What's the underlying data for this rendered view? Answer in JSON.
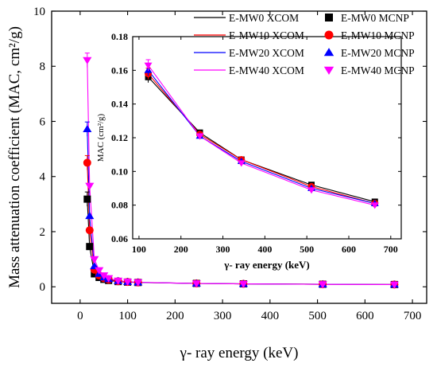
{
  "chart_data": [
    {
      "type": "line",
      "role": "main",
      "xlabel": "γ- ray energy (keV)",
      "ylabel": "Mass attenuation coefficient (MAC, cm²/g)",
      "xlim": [
        -60,
        730
      ],
      "ylim": [
        -0.6,
        10
      ],
      "xticks": [
        0,
        100,
        200,
        300,
        400,
        500,
        600,
        700
      ],
      "yticks": [
        0,
        2,
        4,
        6,
        8,
        10
      ],
      "x": [
        15,
        20,
        30,
        40,
        50,
        60,
        80,
        100,
        122,
        245,
        344,
        511,
        662
      ],
      "series": [
        {
          "name": "E-MW0  XCOM",
          "color": "#000000",
          "values": [
            3.15,
            1.45,
            0.48,
            0.33,
            0.27,
            0.23,
            0.19,
            0.17,
            0.157,
            0.123,
            0.107,
            0.092,
            0.082
          ]
        },
        {
          "name": "E-MW10 XCOM",
          "color": "#ff0000",
          "values": [
            4.5,
            2.05,
            0.62,
            0.41,
            0.31,
            0.26,
            0.2,
            0.175,
            0.158,
            0.122,
            0.107,
            0.091,
            0.081
          ]
        },
        {
          "name": "E-MW20  XCOM",
          "color": "#0000ff",
          "values": [
            5.7,
            2.55,
            0.75,
            0.47,
            0.34,
            0.28,
            0.21,
            0.178,
            0.16,
            0.121,
            0.106,
            0.09,
            0.081
          ]
        },
        {
          "name": "E-MW40  XCOM",
          "color": "#ff00ff",
          "values": [
            8.2,
            3.65,
            1.0,
            0.6,
            0.41,
            0.31,
            0.22,
            0.185,
            0.163,
            0.121,
            0.105,
            0.089,
            0.08
          ]
        },
        {
          "name": "E-MW0  MCNP",
          "color": "#000000",
          "marker": "square",
          "values": [
            3.18,
            1.46,
            0.47,
            0.34,
            0.27,
            0.23,
            0.19,
            0.17,
            0.156,
            0.123,
            0.107,
            0.092,
            0.082
          ]
        },
        {
          "name": "E-MW10 MCNP",
          "color": "#ff0000",
          "marker": "circle",
          "values": [
            4.5,
            2.05,
            0.62,
            0.41,
            0.31,
            0.26,
            0.2,
            0.175,
            0.158,
            0.122,
            0.107,
            0.091,
            0.081
          ]
        },
        {
          "name": "E-MW20  MCNP",
          "color": "#0000ff",
          "marker": "triangle-up",
          "values": [
            5.72,
            2.57,
            0.75,
            0.47,
            0.34,
            0.28,
            0.21,
            0.178,
            0.16,
            0.121,
            0.106,
            0.09,
            0.081
          ]
        },
        {
          "name": "E-MW40  MCNP",
          "color": "#ff00ff",
          "marker": "triangle-down",
          "values": [
            8.22,
            3.66,
            1.0,
            0.6,
            0.41,
            0.31,
            0.22,
            0.185,
            0.163,
            0.121,
            0.105,
            0.089,
            0.08
          ]
        }
      ]
    },
    {
      "type": "line",
      "role": "inset",
      "xlabel": "γ- ray energy (keV)",
      "ylabel": "MAC (cm²/g)",
      "xlim": [
        85,
        725
      ],
      "ylim": [
        0.06,
        0.18
      ],
      "xticks": [
        100,
        200,
        300,
        400,
        500,
        600,
        700
      ],
      "yticks": [
        0.06,
        0.08,
        0.1,
        0.12,
        0.14,
        0.16,
        0.18
      ],
      "ytick_labels": [
        "0.06",
        "0.08",
        "0.10",
        "0.12",
        "0.14",
        "0.16",
        "0.18"
      ],
      "x": [
        122,
        245,
        344,
        511,
        662
      ],
      "series": [
        {
          "name": "E-MW0",
          "color": "#000000",
          "marker": "square",
          "values": [
            0.156,
            0.123,
            0.107,
            0.092,
            0.082
          ]
        },
        {
          "name": "E-MW10",
          "color": "#ff0000",
          "marker": "circle",
          "values": [
            0.158,
            0.122,
            0.107,
            0.091,
            0.081
          ]
        },
        {
          "name": "E-MW20",
          "color": "#0000ff",
          "marker": "triangle-up",
          "values": [
            0.16,
            0.121,
            0.106,
            0.09,
            0.081
          ]
        },
        {
          "name": "E-MW40",
          "color": "#ff00ff",
          "marker": "triangle-down",
          "values": [
            0.163,
            0.121,
            0.105,
            0.089,
            0.08
          ]
        }
      ]
    }
  ]
}
